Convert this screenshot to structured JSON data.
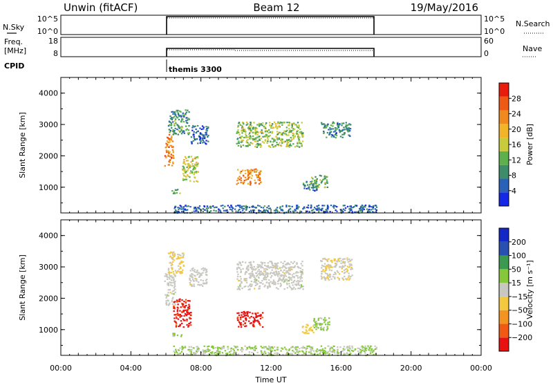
{
  "header": {
    "station": "Unwin (fitACF)",
    "beam": "Beam 12",
    "date": "19/May/2016"
  },
  "status_panels": {
    "nsky_label": "N.Sky",
    "nsky_ticks": [
      "10^5",
      "10^0"
    ],
    "nsearch_label": "N.Search",
    "freq_label_1": "Freq.",
    "freq_label_2": "[MHz]",
    "freq_ticks": [
      "18",
      "8"
    ],
    "nave_label": "Nave",
    "nave_ticks": [
      "60",
      "0"
    ],
    "cpid_label": "CPID",
    "cpid_value": "themis 3300"
  },
  "chart_data": [
    {
      "type": "heatmap",
      "title": "",
      "xlabel": "",
      "ylabel": "Slant Range [km]",
      "xlim": [
        0,
        24
      ],
      "ylim": [
        180,
        4500
      ],
      "yticks": [
        "1000",
        "2000",
        "3000",
        "4000"
      ],
      "colorbar": {
        "label": "Power [dB]",
        "range": [
          0,
          32
        ],
        "ticks": [
          "4",
          "8",
          "12",
          "16",
          "20",
          "24",
          "28"
        ],
        "colors": [
          "#1428e6",
          "#2a62b8",
          "#3f8c6a",
          "#5db04b",
          "#c8cc3c",
          "#f2b428",
          "#f08a1e",
          "#ee5a16",
          "#e81c0c"
        ]
      },
      "regions": [
        {
          "t": [
            5.9,
            6.4
          ],
          "r": [
            1700,
            2700
          ],
          "v": 24
        },
        {
          "t": [
            6.1,
            7.3
          ],
          "r": [
            2700,
            3500
          ],
          "v": 10
        },
        {
          "t": [
            6.3,
            6.8
          ],
          "r": [
            800,
            950
          ],
          "v": 12
        },
        {
          "t": [
            6.9,
            7.8
          ],
          "r": [
            1200,
            2000
          ],
          "v": 16
        },
        {
          "t": [
            7.4,
            8.4
          ],
          "r": [
            2400,
            3000
          ],
          "v": 6
        },
        {
          "t": [
            10.0,
            11.4
          ],
          "r": [
            1100,
            1600
          ],
          "v": 22
        },
        {
          "t": [
            10.0,
            13.8
          ],
          "r": [
            2300,
            3100
          ],
          "v": 14
        },
        {
          "t": [
            13.8,
            14.6
          ],
          "r": [
            900,
            1200
          ],
          "v": 8
        },
        {
          "t": [
            14.2,
            15.2
          ],
          "r": [
            1000,
            1400
          ],
          "v": 12
        },
        {
          "t": [
            14.8,
            16.5
          ],
          "r": [
            2600,
            3100
          ],
          "v": 8
        },
        {
          "t": [
            6.4,
            18.0
          ],
          "r": [
            200,
            450
          ],
          "v": 6
        }
      ]
    },
    {
      "type": "heatmap",
      "title": "",
      "xlabel": "Time UT",
      "ylabel": "Slant Range [km]",
      "xlim": [
        0,
        24
      ],
      "ylim": [
        180,
        4500
      ],
      "xticks": [
        "00:00",
        "04:00",
        "08:00",
        "12:00",
        "16:00",
        "20:00",
        "00:00"
      ],
      "yticks": [
        "1000",
        "2000",
        "3000",
        "4000"
      ],
      "colorbar": {
        "label": "Velocity [m s⁻¹]",
        "range": [
          -260,
          260
        ],
        "ticks": [
          "-200",
          "-100",
          "-50",
          "-15",
          "15",
          "50",
          "100",
          "200"
        ],
        "colors": [
          "#e81010",
          "#f05a14",
          "#f49420",
          "#f4c840",
          "#c8c8c0",
          "#86c83c",
          "#3c9a50",
          "#2850b0",
          "#1428c8"
        ]
      },
      "regions": [
        {
          "t": [
            5.9,
            6.5
          ],
          "r": [
            1800,
            2800
          ],
          "v": 0
        },
        {
          "t": [
            6.4,
            7.4
          ],
          "r": [
            1100,
            2000
          ],
          "v": -220
        },
        {
          "t": [
            6.1,
            7.0
          ],
          "r": [
            2800,
            3500
          ],
          "v": -40
        },
        {
          "t": [
            6.3,
            6.9
          ],
          "r": [
            800,
            950
          ],
          "v": 40
        },
        {
          "t": [
            7.3,
            8.3
          ],
          "r": [
            2400,
            3000
          ],
          "v": 0
        },
        {
          "t": [
            10.0,
            11.5
          ],
          "r": [
            1100,
            1600
          ],
          "v": -220
        },
        {
          "t": [
            10.0,
            13.8
          ],
          "r": [
            2300,
            3200
          ],
          "v": 0
        },
        {
          "t": [
            13.7,
            14.4
          ],
          "r": [
            900,
            1200
          ],
          "v": -60
        },
        {
          "t": [
            14.3,
            15.3
          ],
          "r": [
            1000,
            1400
          ],
          "v": 40
        },
        {
          "t": [
            14.8,
            16.6
          ],
          "r": [
            2600,
            3300
          ],
          "v": -20
        },
        {
          "t": [
            6.4,
            18.0
          ],
          "r": [
            200,
            500
          ],
          "v": 30
        }
      ]
    }
  ]
}
